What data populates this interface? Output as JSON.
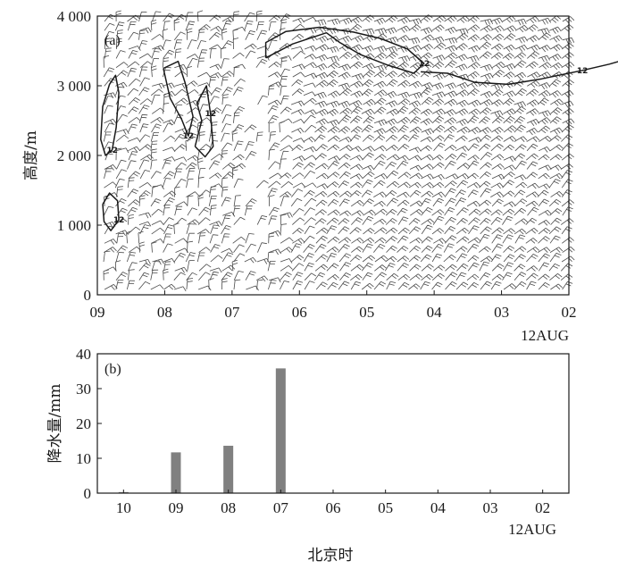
{
  "chart_data": [
    {
      "panel": "(a)",
      "type": "wind-barb time-height section",
      "ylabel": "高度/m",
      "ylim": [
        0,
        4000
      ],
      "yticks": [
        "0",
        "1 000",
        "2 000",
        "3 000",
        "4 000"
      ],
      "x_ticks": [
        "09",
        "08",
        "07",
        "06",
        "05",
        "04",
        "03",
        "02"
      ],
      "x_date_label": "12AUG",
      "contour_label": "12",
      "grid": false,
      "contours": [
        {
          "label": "12",
          "points": [
            [
              2.5,
              3400
            ],
            [
              2.9,
              3600
            ],
            [
              3.4,
              3760
            ],
            [
              3.6,
              3620
            ],
            [
              3.9,
              3450
            ],
            [
              4.3,
              3300
            ],
            [
              4.7,
              3180
            ],
            [
              4.85,
              3320
            ],
            [
              4.6,
              3530
            ],
            [
              4.2,
              3680
            ],
            [
              3.8,
              3770
            ],
            [
              3.3,
              3840
            ],
            [
              2.8,
              3780
            ],
            [
              2.5,
              3620
            ],
            [
              2.5,
              3400
            ]
          ]
        },
        {
          "label": "12",
          "points": [
            [
              4.8,
              3200
            ],
            [
              5.2,
              3180
            ],
            [
              5.6,
              3050
            ],
            [
              6.1,
              3020
            ],
            [
              6.6,
              3100
            ],
            [
              7.2,
              3220
            ],
            [
              7.6,
              3310
            ],
            [
              8.0,
              3420
            ],
            [
              8.3,
              3560
            ],
            [
              8.7,
              3660
            ]
          ]
        },
        {
          "label": "12",
          "points": [
            [
              1.45,
              2130
            ],
            [
              1.55,
              2500
            ],
            [
              1.48,
              2750
            ],
            [
              1.62,
              3000
            ],
            [
              1.68,
              2600
            ],
            [
              1.72,
              2130
            ],
            [
              1.6,
              1980
            ],
            [
              1.45,
              2130
            ]
          ]
        },
        {
          "label": "12",
          "points": [
            [
              0.98,
              3250
            ],
            [
              1.2,
              3350
            ],
            [
              1.3,
              3050
            ],
            [
              1.42,
              2560
            ],
            [
              1.35,
              2280
            ],
            [
              1.25,
              2520
            ],
            [
              1.08,
              2820
            ],
            [
              0.98,
              3250
            ]
          ]
        },
        {
          "label": "12",
          "points": [
            [
              0.18,
              3020
            ],
            [
              0.08,
              2700
            ],
            [
              0.05,
              2230
            ],
            [
              0.12,
              2000
            ],
            [
              0.22,
              2080
            ],
            [
              0.28,
              2400
            ],
            [
              0.32,
              2900
            ],
            [
              0.27,
              3150
            ],
            [
              0.18,
              3020
            ]
          ]
        },
        {
          "label": "12",
          "points": [
            [
              0.08,
              1300
            ],
            [
              0.1,
              1050
            ],
            [
              0.2,
              920
            ],
            [
              0.32,
              1080
            ],
            [
              0.3,
              1350
            ],
            [
              0.18,
              1460
            ],
            [
              0.08,
              1300
            ]
          ]
        }
      ]
    },
    {
      "panel": "(b)",
      "type": "bar",
      "ylabel": "降水量/mm",
      "ylim": [
        0,
        40
      ],
      "yticks": [
        "0",
        "10",
        "20",
        "30",
        "40"
      ],
      "xlabel": "北京时",
      "x_date_label": "12AUG",
      "categories": [
        "10",
        "09",
        "08",
        "07",
        "06",
        "05",
        "04",
        "03",
        "02"
      ],
      "values": [
        0.3,
        11.7,
        13.6,
        35.8,
        0,
        0,
        0,
        0,
        0
      ],
      "bar_color": "#808080",
      "grid": false
    }
  ]
}
